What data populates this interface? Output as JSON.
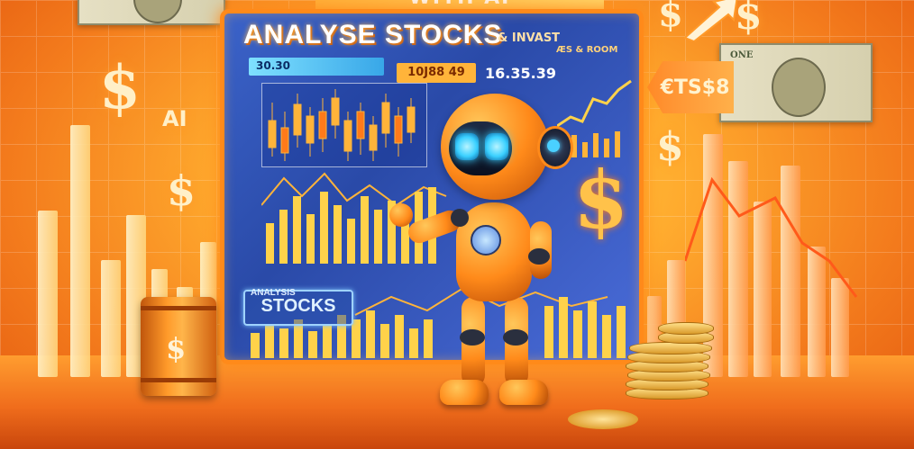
{
  "banner": {
    "top_text": "WITH AI"
  },
  "monitor": {
    "title": "ANALYSE STOCKS",
    "subtitle": "& INVAST",
    "subtitle2": "ÆS & ROOM",
    "ticker_left": "30.30",
    "ticker_mid": "10J88 49",
    "ticker_right": "16.35.39",
    "stocks_label_small": "ANALYSIS",
    "stocks_label": "STOCKS"
  },
  "decor": {
    "ai_label": "AI",
    "dollar_symbol": "$",
    "sign_text": "€TS$8",
    "bill_text": "ONE"
  },
  "colors": {
    "accent_orange": "#ff8a1a",
    "screen_blue": "#2a4aa8",
    "eye_cyan": "#3ad0ff",
    "gold": "#ffd24a"
  }
}
